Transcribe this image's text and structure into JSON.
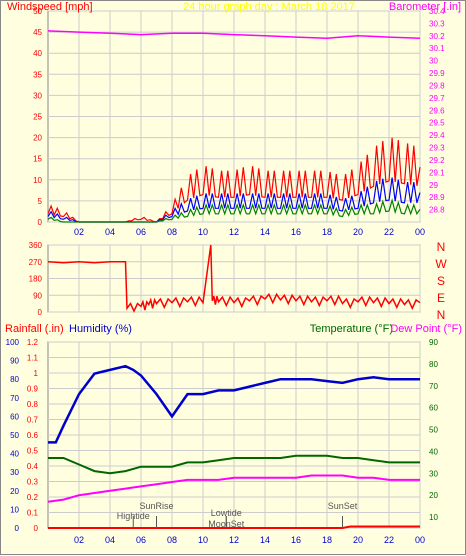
{
  "colors": {
    "background": "#ffffe0",
    "frame": "#888888",
    "grid": "#cccccc",
    "windspeed": "#ff0000",
    "wind_blue": "#0000ff",
    "wind_green": "#008000",
    "barometer": "#ff00ff",
    "direction": "#ff0000",
    "humidity": "#0000cc",
    "temperature": "#006600",
    "dewpoint": "#ff00ff",
    "rainfall": "#ff0000",
    "title": "#ffff00"
  },
  "chart_data": [
    {
      "id": "wind",
      "type": "line",
      "title": "24 hour graph day : March 18 2017",
      "ylabel_left": "Windspeed [mph]",
      "ylabel_right": "Barometer [.in]",
      "x_ticks": [
        "02",
        "04",
        "06",
        "08",
        "10",
        "12",
        "14",
        "16",
        "18",
        "20",
        "22",
        "00"
      ],
      "xlim": [
        0,
        24
      ],
      "ylim_left": [
        0,
        50
      ],
      "ylim_right": [
        28.7,
        30.4
      ],
      "left_ticks": [
        "0",
        "5",
        "10",
        "15",
        "20",
        "25",
        "30",
        "35",
        "40",
        "45",
        "50"
      ],
      "right_ticks": [
        "28.8",
        "28.9",
        "29",
        "29.1",
        "29.2",
        "29.3",
        "29.4",
        "29.5",
        "29.6",
        "29.7",
        "29.8",
        "29.9",
        "30",
        "30.1",
        "30.2",
        "30.3",
        "30.4"
      ],
      "series": [
        {
          "x": [
            0,
            1,
            2,
            3,
            4,
            5,
            6,
            7,
            8,
            9,
            10,
            11,
            12,
            13,
            14,
            15,
            16,
            17,
            18,
            19,
            20,
            21,
            22,
            23,
            24
          ],
          "values": [
            3,
            2,
            0,
            0,
            0,
            0,
            1,
            0,
            3,
            8,
            10,
            9,
            9,
            10,
            9,
            9,
            9,
            9,
            9,
            8,
            10,
            13,
            15,
            14,
            13
          ]
        },
        {
          "x": [
            0,
            1,
            2,
            3,
            4,
            5,
            6,
            7,
            8,
            9,
            10,
            11,
            12,
            13,
            14,
            15,
            16,
            17,
            18,
            19,
            20,
            21,
            22,
            23,
            24
          ],
          "values": [
            2,
            1,
            0,
            0,
            0,
            0,
            0,
            0,
            2,
            4,
            5,
            5,
            5,
            5,
            5,
            5,
            5,
            5,
            5,
            4,
            5,
            7,
            8,
            7,
            7
          ]
        },
        {
          "x": [
            0,
            1,
            2,
            3,
            4,
            5,
            6,
            7,
            8,
            9,
            10,
            11,
            12,
            13,
            14,
            15,
            16,
            17,
            18,
            19,
            20,
            21,
            22,
            23,
            24
          ],
          "values": [
            1,
            0,
            0,
            0,
            0,
            0,
            0,
            0,
            1,
            2,
            3,
            3,
            3,
            3,
            3,
            3,
            3,
            3,
            3,
            2,
            3,
            3,
            4,
            3,
            3
          ]
        },
        {
          "x": [
            0,
            2,
            4,
            6,
            8,
            10,
            12,
            14,
            16,
            18,
            20,
            22,
            24
          ],
          "values": [
            30.24,
            30.23,
            30.22,
            30.21,
            30.22,
            30.22,
            30.21,
            30.2,
            30.19,
            30.18,
            30.2,
            30.19,
            30.18
          ]
        }
      ]
    },
    {
      "id": "direction",
      "type": "line",
      "xlim": [
        0,
        24
      ],
      "ylim": [
        0,
        360
      ],
      "left_ticks": [
        "0",
        "90",
        "180",
        "270",
        "360"
      ],
      "right_labels": [
        "N",
        "W",
        "S",
        "E",
        "N"
      ],
      "series": [
        {
          "x": [
            0,
            1,
            2,
            3,
            4,
            5,
            5.1,
            6,
            6.5,
            7,
            8,
            9,
            10,
            10.5,
            10.6,
            11,
            12,
            13,
            14,
            15,
            16,
            17,
            18,
            19,
            20,
            21,
            22,
            23,
            24
          ],
          "values": [
            270,
            265,
            270,
            265,
            270,
            270,
            20,
            30,
            40,
            45,
            50,
            55,
            50,
            360,
            60,
            55,
            50,
            60,
            70,
            65,
            60,
            55,
            60,
            45,
            55,
            50,
            45,
            40,
            50
          ]
        }
      ]
    },
    {
      "id": "temp",
      "type": "line",
      "ylabel_left_rain": "Rainfall (.in)",
      "ylabel_left_hum": "Humidity (%)",
      "ylabel_right_temp": "Temperature (°F)",
      "ylabel_right_dew": "Dew Point (°F)",
      "xlim": [
        0,
        24
      ],
      "rain_ticks": [
        "0",
        "0.1",
        "0.2",
        "0.3",
        "0.4",
        "0.5",
        "0.6",
        "0.7",
        "0.8",
        "0.9",
        "1",
        "1.1",
        "1.2"
      ],
      "hum_ticks": [
        "0",
        "10",
        "20",
        "30",
        "40",
        "50",
        "60",
        "70",
        "80",
        "90",
        "100"
      ],
      "right_ticks": [
        "10",
        "20",
        "30",
        "40",
        "50",
        "60",
        "70",
        "80",
        "90"
      ],
      "x_ticks": [
        "02",
        "04",
        "06",
        "08",
        "10",
        "12",
        "14",
        "16",
        "18",
        "20",
        "22",
        "00"
      ],
      "annotations": [
        {
          "label": "Hightide",
          "x": 5.5
        },
        {
          "label": "SunRise",
          "x": 7.0
        },
        {
          "label": "Lowtide",
          "x": 11.5
        },
        {
          "label": "MoonSet",
          "x": 11.5
        },
        {
          "label": "SunSet",
          "x": 19.0
        }
      ],
      "series": [
        {
          "name": "Humidity",
          "x": [
            0,
            0.5,
            1,
            2,
            3,
            4,
            5,
            5.5,
            6,
            7,
            8,
            9,
            10,
            11,
            12,
            13,
            14,
            15,
            16,
            17,
            18,
            19,
            20,
            21,
            22,
            23,
            24
          ],
          "values": [
            46,
            46,
            55,
            72,
            83,
            85,
            87,
            85,
            82,
            72,
            60,
            72,
            72,
            74,
            74,
            76,
            78,
            80,
            80,
            80,
            79,
            78,
            80,
            81,
            80,
            80,
            80
          ]
        },
        {
          "name": "Temperature",
          "x": [
            0,
            1,
            2,
            3,
            4,
            5,
            6,
            7,
            8,
            9,
            10,
            11,
            12,
            13,
            14,
            15,
            16,
            17,
            18,
            19,
            20,
            21,
            22,
            23,
            24
          ],
          "values": [
            37,
            37,
            34,
            31,
            30,
            31,
            33,
            33,
            33,
            35,
            35,
            36,
            37,
            37,
            37,
            37,
            38,
            38,
            38,
            37,
            37,
            36,
            35,
            35,
            35
          ]
        },
        {
          "name": "Dew Point",
          "x": [
            0,
            1,
            2,
            3,
            4,
            5,
            6,
            7,
            8,
            9,
            10,
            11,
            12,
            13,
            14,
            15,
            16,
            17,
            18,
            19,
            20,
            21,
            22,
            23,
            24
          ],
          "values": [
            17,
            18,
            20,
            21,
            22,
            23,
            24,
            25,
            26,
            27,
            27,
            27,
            28,
            28,
            28,
            28,
            28,
            29,
            29,
            29,
            28,
            28,
            27,
            27,
            27
          ]
        },
        {
          "name": "Rainfall",
          "x": [
            0,
            19,
            19.5,
            24
          ],
          "values": [
            0,
            0,
            0.01,
            0.01
          ]
        }
      ]
    }
  ]
}
